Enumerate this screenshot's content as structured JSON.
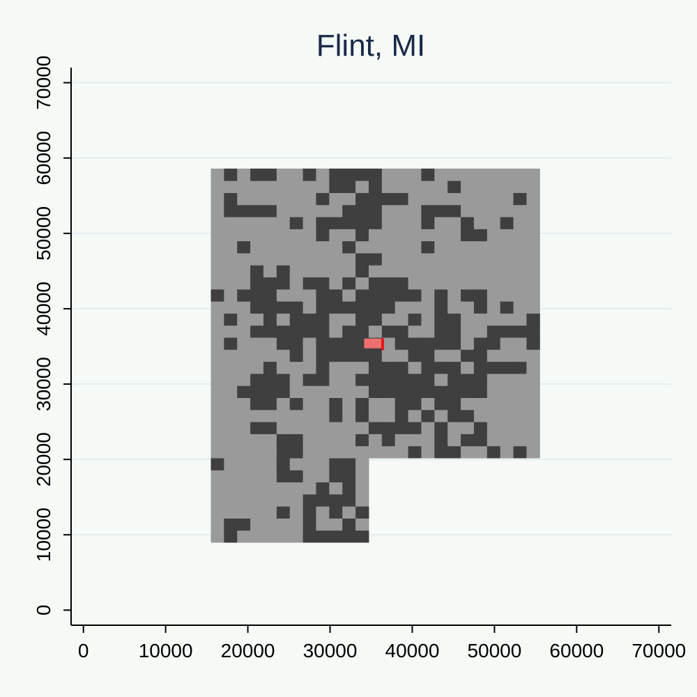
{
  "chart_data": {
    "type": "scatter",
    "title": "Flint, MI",
    "xlabel": "",
    "ylabel": "",
    "xlim": [
      -1500,
      71500
    ],
    "ylim": [
      -2000,
      72000
    ],
    "x_ticks": [
      0,
      10000,
      20000,
      30000,
      40000,
      50000,
      60000,
      70000
    ],
    "y_ticks": [
      0,
      10000,
      20000,
      30000,
      40000,
      50000,
      60000,
      70000
    ],
    "x_tick_labels": [
      "0",
      "10000",
      "20000",
      "30000",
      "40000",
      "50000",
      "60000",
      "70000"
    ],
    "y_tick_labels": [
      "0",
      "10000",
      "20000",
      "30000",
      "40000",
      "50000",
      "60000",
      "70000"
    ],
    "grid": "horizontal",
    "legend": "none",
    "series": [
      {
        "role": "region_cells_light",
        "color": "#9a9a9a",
        "extent": {
          "x": [
            15500,
            54000
          ],
          "y": [
            9000,
            58000
          ]
        },
        "notch_excluded": {
          "x": [
            35500,
            54000
          ],
          "y": [
            9000,
            19500
          ]
        }
      },
      {
        "role": "region_cells_dark",
        "color": "#3f3f3f",
        "hotspots": [
          {
            "x": 35000,
            "y": 33000,
            "r": 7000
          },
          {
            "x": 33000,
            "y": 38000,
            "r": 5000
          },
          {
            "x": 38000,
            "y": 28000,
            "r": 5000
          },
          {
            "x": 43000,
            "y": 27000,
            "r": 4500
          },
          {
            "x": 27500,
            "y": 39000,
            "r": 4000
          },
          {
            "x": 23000,
            "y": 40500,
            "r": 3500
          },
          {
            "x": 31500,
            "y": 53500,
            "r": 3000
          },
          {
            "x": 19000,
            "y": 52000,
            "r": 2000
          },
          {
            "x": 48000,
            "y": 36500,
            "r": 2500
          },
          {
            "x": 30500,
            "y": 12500,
            "r": 3500
          },
          {
            "x": 21500,
            "y": 28000,
            "r": 2500
          }
        ]
      },
      {
        "role": "highlight",
        "color": "#f07070",
        "points": [
          {
            "x": 34500,
            "y": 35700
          },
          {
            "x": 35200,
            "y": 35700
          },
          {
            "x": 35900,
            "y": 35700
          },
          {
            "x": 34500,
            "y": 35100
          },
          {
            "x": 35200,
            "y": 35100
          },
          {
            "x": 35900,
            "y": 35100
          }
        ]
      },
      {
        "role": "highlight_edge",
        "color": "#e81010",
        "points": [
          {
            "x": 36400,
            "y": 35800
          },
          {
            "x": 36400,
            "y": 35300
          },
          {
            "x": 36400,
            "y": 34800
          }
        ]
      }
    ]
  }
}
